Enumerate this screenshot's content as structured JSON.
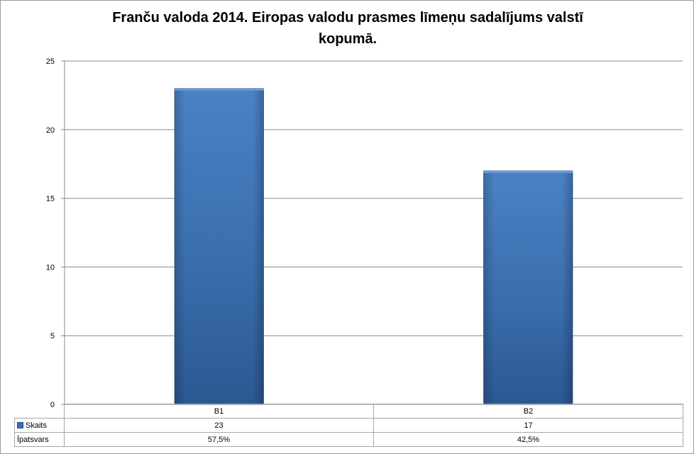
{
  "chart_data": {
    "type": "bar",
    "title": "Franču valoda 2014. Eiropas valodu prasmes līmeņu sadalījums valstī kopumā.",
    "title_lines": [
      "Franču valoda 2014. Eiropas valodu prasmes līmeņu sadalījums valstī",
      "kopumā."
    ],
    "categories": [
      "B1",
      "B2"
    ],
    "series": [
      {
        "name": "Skaits",
        "values": [
          23,
          17
        ],
        "color": "#3a6eae"
      }
    ],
    "ylim": [
      0,
      25
    ],
    "yticks": [
      "0",
      "5",
      "10",
      "15",
      "20",
      "25"
    ],
    "grid": true,
    "legend": "data-table",
    "table": {
      "rows": [
        {
          "label": "Skaits",
          "values": [
            "23",
            "17"
          ]
        },
        {
          "label": "Īpatsvars",
          "values": [
            "57,5%",
            "42,5%"
          ]
        }
      ]
    }
  }
}
